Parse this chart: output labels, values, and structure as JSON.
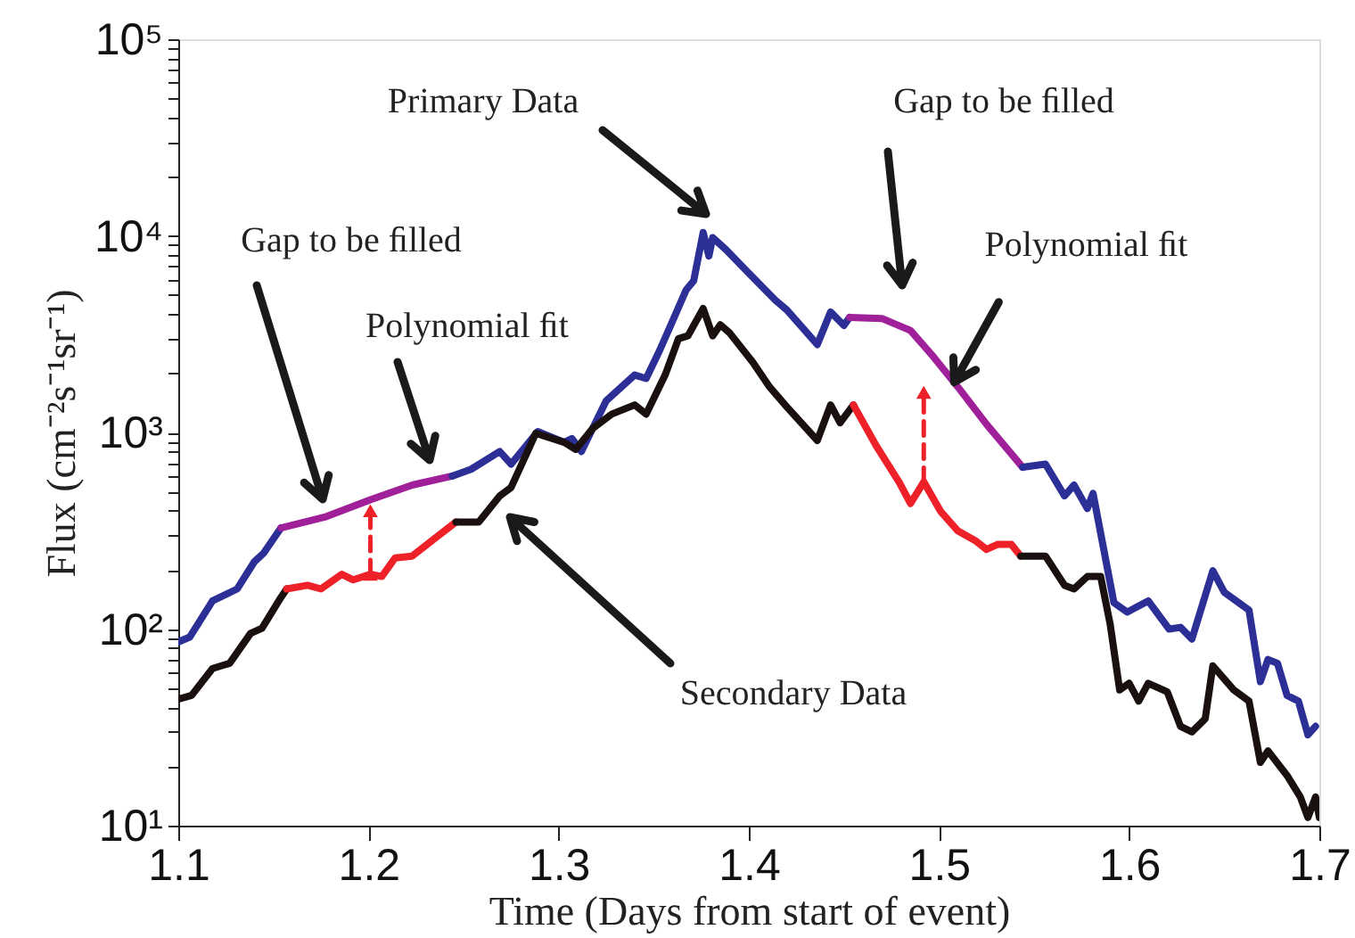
{
  "chart_data": {
    "type": "line",
    "xlabel": "Time (Days from start of event)",
    "ylabel": "Flux (cm⁻²s⁻¹sr⁻¹)",
    "log": "y",
    "grid": false,
    "marker": "none",
    "xlim": [
      1.1,
      1.7
    ],
    "xticks": [
      1.1,
      1.2,
      1.3,
      1.4,
      1.5,
      1.6,
      1.7
    ],
    "ylim": [
      10,
      100000
    ],
    "yticks": [
      {
        "value": 10,
        "label": "10¹"
      },
      {
        "value": 20,
        "label": null
      },
      {
        "value": 30,
        "label": null
      },
      {
        "value": 40,
        "label": null
      },
      {
        "value": 50,
        "label": null
      },
      {
        "value": 60,
        "label": null
      },
      {
        "value": 70,
        "label": null
      },
      {
        "value": 80,
        "label": null
      },
      {
        "value": 90,
        "label": null
      },
      {
        "value": 100,
        "label": "10²"
      },
      {
        "value": 200,
        "label": null
      },
      {
        "value": 300,
        "label": null
      },
      {
        "value": 400,
        "label": null
      },
      {
        "value": 500,
        "label": null
      },
      {
        "value": 600,
        "label": null
      },
      {
        "value": 700,
        "label": null
      },
      {
        "value": 800,
        "label": null
      },
      {
        "value": 900,
        "label": null
      },
      {
        "value": 1000,
        "label": "10³"
      },
      {
        "value": 2000,
        "label": null
      },
      {
        "value": 3000,
        "label": null
      },
      {
        "value": 4000,
        "label": null
      },
      {
        "value": 5000,
        "label": null
      },
      {
        "value": 6000,
        "label": null
      },
      {
        "value": 7000,
        "label": null
      },
      {
        "value": 8000,
        "label": null
      },
      {
        "value": 9000,
        "label": null
      },
      {
        "value": 10000,
        "label": "10⁴"
      },
      {
        "value": 20000,
        "label": null
      },
      {
        "value": 30000,
        "label": null
      },
      {
        "value": 40000,
        "label": null
      },
      {
        "value": 50000,
        "label": null
      },
      {
        "value": 60000,
        "label": null
      },
      {
        "value": 70000,
        "label": null
      },
      {
        "value": 80000,
        "label": null
      },
      {
        "value": 90000,
        "label": null
      },
      {
        "value": 100000,
        "label": "10⁵"
      }
    ],
    "series": [
      {
        "color": "#2b2f96",
        "line_style": "solid",
        "x": [
          1.1,
          1.106,
          1.118,
          1.131,
          1.14,
          1.145,
          1.154
        ],
        "values": [
          86,
          91,
          139,
          160,
          220,
          244,
          327
        ]
      },
      {
        "type": "line",
        "color": "#a0209a",
        "line_style": "solid",
        "x": [
          1.154,
          1.177,
          1.201,
          1.223,
          1.244
        ],
        "values": [
          327,
          371,
          455,
          540,
          600
        ]
      },
      {
        "type": "line",
        "color": "#2b2f96",
        "line_style": "solid",
        "x": [
          1.244,
          1.254,
          1.269,
          1.275,
          1.289,
          1.303,
          1.307,
          1.312,
          1.325,
          1.34,
          1.346,
          1.353,
          1.36,
          1.367,
          1.371,
          1.376,
          1.379,
          1.381,
          1.388,
          1.399,
          1.414,
          1.42,
          1.436,
          1.443,
          1.45,
          1.453
        ],
        "values": [
          600,
          650,
          800,
          690,
          1010,
          890,
          930,
          800,
          1450,
          1960,
          1880,
          2600,
          3700,
          5300,
          5900,
          10400,
          7900,
          9800,
          8500,
          6600,
          4700,
          4200,
          2800,
          4100,
          3500,
          3850
        ]
      },
      {
        "type": "line",
        "color": "#a0209a",
        "line_style": "solid",
        "x": [
          1.453,
          1.47,
          1.485,
          1.497,
          1.51,
          1.525,
          1.544
        ],
        "values": [
          3850,
          3800,
          3300,
          2430,
          1700,
          1100,
          665
        ]
      },
      {
        "type": "line",
        "color": "#2b2f96",
        "line_style": "solid",
        "x": [
          1.544,
          1.556,
          1.566,
          1.571,
          1.578,
          1.581,
          1.592,
          1.599,
          1.61,
          1.621,
          1.627,
          1.633,
          1.644,
          1.65,
          1.663,
          1.669,
          1.673,
          1.678,
          1.683,
          1.689,
          1.694,
          1.698
        ],
        "values": [
          665,
          690,
          476,
          540,
          410,
          490,
          136,
          122,
          139,
          100,
          102,
          89,
          198,
          154,
          125,
          54,
          70,
          67,
          46,
          43,
          29,
          32
        ]
      },
      {
        "type": "line",
        "color": "#1a1010",
        "line_style": "solid",
        "x": [
          1.1,
          1.107,
          1.118,
          1.127,
          1.138,
          1.144,
          1.154,
          1.157
        ],
        "values": [
          44,
          46,
          63,
          67,
          95,
          101,
          145,
          160
        ]
      },
      {
        "type": "line",
        "color": "#ee2028",
        "line_style": "solid",
        "x": [
          1.157,
          1.168,
          1.175,
          1.186,
          1.192,
          1.201,
          1.207,
          1.214,
          1.223,
          1.235,
          1.246
        ],
        "values": [
          160,
          167,
          160,
          190,
          178,
          190,
          185,
          230,
          235,
          290,
          350
        ]
      },
      {
        "type": "line",
        "color": "#1a1010",
        "line_style": "solid",
        "x": [
          1.246,
          1.258,
          1.269,
          1.275,
          1.288,
          1.303,
          1.309,
          1.318,
          1.328,
          1.34,
          1.346,
          1.356,
          1.363,
          1.368,
          1.376,
          1.381,
          1.385,
          1.39,
          1.402,
          1.411,
          1.42,
          1.436,
          1.443,
          1.448,
          1.455
        ],
        "values": [
          350,
          350,
          475,
          525,
          990,
          890,
          820,
          1050,
          1240,
          1380,
          1240,
          1960,
          3000,
          3100,
          4270,
          3100,
          3530,
          3200,
          2280,
          1700,
          1350,
          910,
          1380,
          1120,
          1380
        ]
      },
      {
        "type": "line",
        "color": "#ee2028",
        "line_style": "solid",
        "x": [
          1.455,
          1.467,
          1.479,
          1.485,
          1.492,
          1.501,
          1.51,
          1.519,
          1.525,
          1.531,
          1.538,
          1.543
        ],
        "values": [
          1380,
          855,
          560,
          435,
          560,
          395,
          315,
          282,
          254,
          270,
          270,
          235
        ]
      },
      {
        "type": "line",
        "color": "#1a1010",
        "line_style": "solid",
        "x": [
          1.543,
          1.556,
          1.566,
          1.571,
          1.578,
          1.585,
          1.59,
          1.595,
          1.6,
          1.605,
          1.61,
          1.62,
          1.627,
          1.633,
          1.64,
          1.644,
          1.655,
          1.663,
          1.669,
          1.673,
          1.683,
          1.69,
          1.694,
          1.698,
          1.7
        ],
        "values": [
          235,
          235,
          167,
          160,
          185,
          185,
          106,
          49,
          53,
          43,
          53,
          48,
          32,
          30,
          35,
          65,
          49,
          43,
          21,
          24,
          18,
          14,
          11,
          14,
          11
        ]
      },
      {
        "type": "line",
        "color": "#ee2028",
        "line_style": "dashed",
        "marker": "triangle",
        "x": [
          1.201,
          1.201
        ],
        "values": [
          190,
          400
        ]
      },
      {
        "type": "line",
        "color": "#ee2028",
        "line_style": "dashed",
        "marker": "triangle",
        "x": [
          1.492,
          1.492
        ],
        "values": [
          560,
          1600
        ]
      }
    ],
    "annotations": [
      "Primary Data",
      "Gap to be ﬁlled",
      {
        "text": "Polynomial ﬁt",
        "x": 1.508,
        "y": 1800
      },
      "Gap to be ﬁlled",
      "Polynomial ﬁt",
      "Secondary Data"
    ]
  }
}
